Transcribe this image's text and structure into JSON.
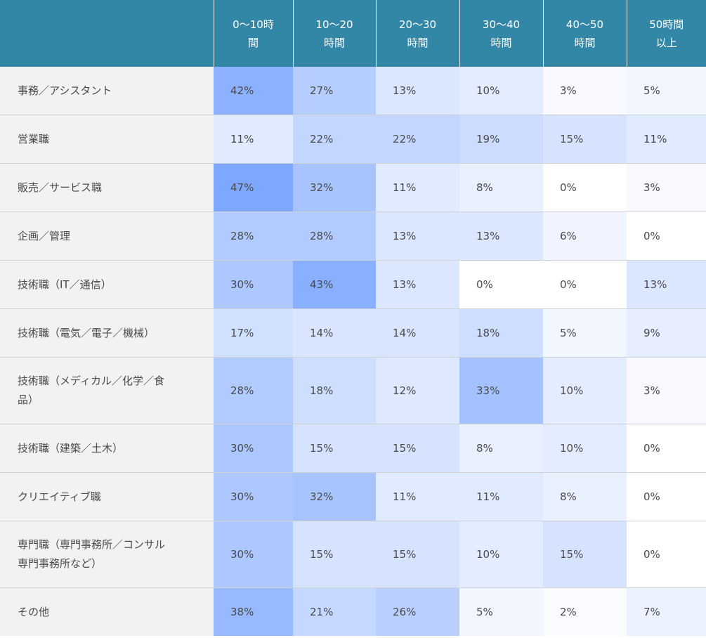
{
  "chart_data": {
    "type": "heatmap",
    "columns": [
      {
        "label": [
          "0〜10時",
          "間"
        ]
      },
      {
        "label": [
          "10〜20",
          "時間"
        ]
      },
      {
        "label": [
          "20〜30",
          "時間"
        ]
      },
      {
        "label": [
          "30〜40",
          "時間"
        ]
      },
      {
        "label": [
          "40〜50",
          "時間"
        ]
      },
      {
        "label": [
          "50時間",
          "以上"
        ]
      }
    ],
    "rows": [
      {
        "label": [
          "事務／アシスタント"
        ],
        "values": [
          "42%",
          "27%",
          "13%",
          "10%",
          "3%",
          "5%"
        ]
      },
      {
        "label": [
          "営業職"
        ],
        "values": [
          "11%",
          "22%",
          "22%",
          "19%",
          "15%",
          "11%"
        ]
      },
      {
        "label": [
          "販売／サービス職"
        ],
        "values": [
          "47%",
          "32%",
          "11%",
          "8%",
          "0%",
          "3%"
        ]
      },
      {
        "label": [
          "企画／管理"
        ],
        "values": [
          "28%",
          "28%",
          "13%",
          "13%",
          "6%",
          "0%"
        ]
      },
      {
        "label": [
          "技術職（IT／通信）"
        ],
        "values": [
          "30%",
          "43%",
          "13%",
          "0%",
          "0%",
          "13%"
        ]
      },
      {
        "label": [
          "技術職（電気／電子／機械）"
        ],
        "values": [
          "17%",
          "14%",
          "14%",
          "18%",
          "5%",
          "9%"
        ]
      },
      {
        "label": [
          "技術職（メディカル／化学／食",
          "品）"
        ],
        "values": [
          "28%",
          "18%",
          "12%",
          "33%",
          "10%",
          "3%"
        ]
      },
      {
        "label": [
          "技術職（建築／土木）"
        ],
        "values": [
          "30%",
          "15%",
          "15%",
          "8%",
          "10%",
          "0%"
        ]
      },
      {
        "label": [
          "クリエイティブ職"
        ],
        "values": [
          "30%",
          "32%",
          "11%",
          "11%",
          "8%",
          "0%"
        ]
      },
      {
        "label": [
          "専門職（専門事務所／コンサル",
          "専門事務所など）"
        ],
        "values": [
          "30%",
          "15%",
          "15%",
          "10%",
          "15%",
          "0%"
        ]
      },
      {
        "label": [
          "その他"
        ],
        "values": [
          "38%",
          "21%",
          "26%",
          "5%",
          "2%",
          "7%"
        ]
      }
    ],
    "color_scale": {
      "low": "#ffffff",
      "high": "#7ea8ff"
    }
  }
}
